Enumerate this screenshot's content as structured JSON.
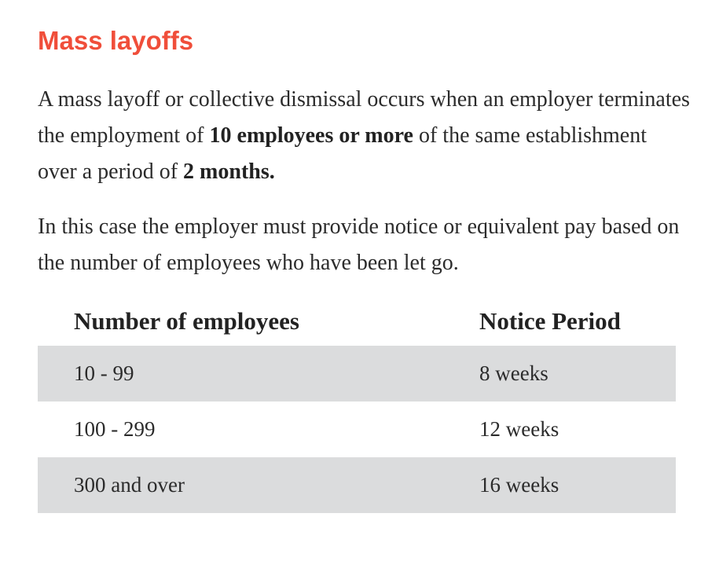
{
  "heading": "Mass layoffs",
  "paragraph1": {
    "part1": "A mass layoff or collective dismissal occurs when an employer terminates the employment of ",
    "bold1": "10 employees or more",
    "part2": " of the same establishment over a period of ",
    "bold2": "2 months."
  },
  "paragraph2": "In this case the employer must provide notice or equivalent pay based on the number of employees who have been let go.",
  "table": {
    "headers": [
      "Number of employees",
      "Notice Period"
    ],
    "rows": [
      [
        "10 - 99",
        "8 weeks"
      ],
      [
        "100 - 299",
        "12 weeks"
      ],
      [
        "300 and over",
        "16 weeks"
      ]
    ],
    "shade_color": "#dbdcdd"
  },
  "colors": {
    "heading": "#f04e3a",
    "text": "#2b2b2b"
  }
}
